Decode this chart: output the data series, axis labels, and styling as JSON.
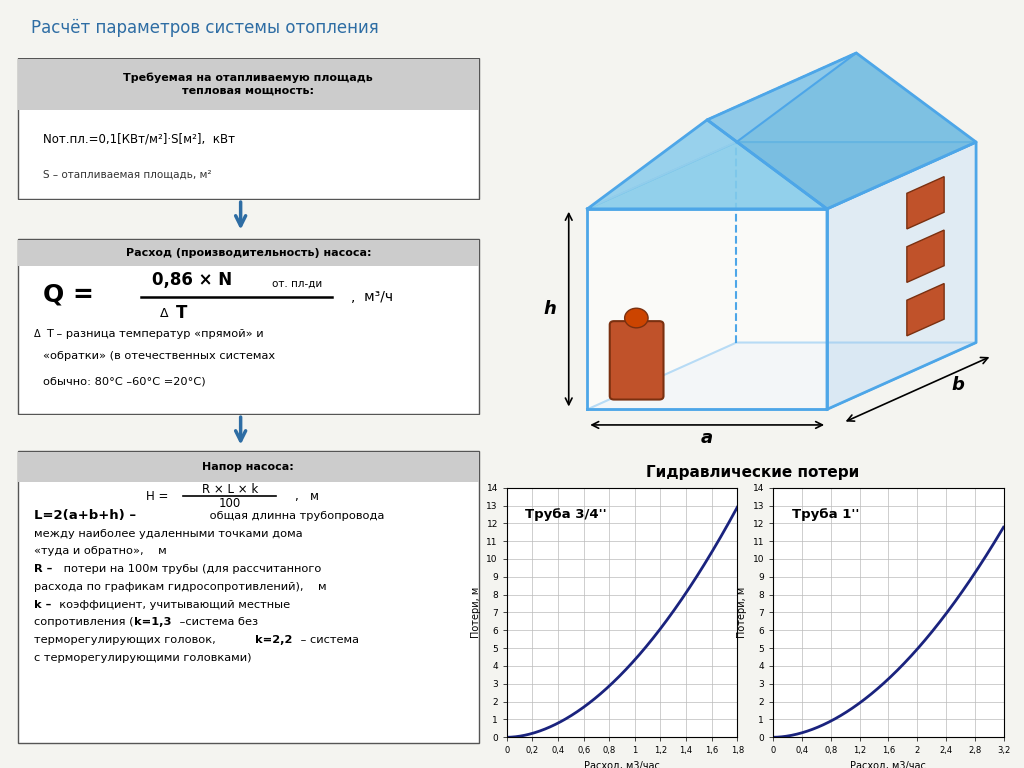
{
  "title": "Расчёт параметров системы отопления",
  "title_color": "#2e6da4",
  "bg_color": "#f5f5f0",
  "box_border_color": "#555555",
  "curve_color": "#1a237e",
  "grid_color": "#bbbbbb",
  "chart_title": "Гидравлические потери",
  "chart1_label": "Труба 3/4''",
  "chart2_label": "Труба 1''",
  "chart1_xlabel": "Расход, м3/час",
  "chart2_xlabel": "Расход, м3/час",
  "chart_ylabel1": "Потери, м",
  "chart_ylabel2": "Потери, м",
  "chart1_xlim": [
    0,
    1.8
  ],
  "chart1_ylim": [
    0,
    14
  ],
  "chart2_xlim": [
    0,
    3.2
  ],
  "chart2_ylim": [
    0,
    14
  ],
  "chart1_xticks": [
    0,
    0.2,
    0.4,
    0.6,
    0.8,
    1.0,
    1.2,
    1.4,
    1.6,
    1.8
  ],
  "chart2_xticks": [
    0,
    0.4,
    0.8,
    1.2,
    1.6,
    2.0,
    2.4,
    2.8,
    3.2
  ],
  "chart1_yticks": [
    0,
    1,
    2,
    3,
    4,
    5,
    6,
    7,
    8,
    9,
    10,
    11,
    12,
    13,
    14
  ],
  "chart2_yticks": [
    0,
    1,
    2,
    3,
    4,
    5,
    6,
    7,
    8,
    9,
    10,
    11,
    12,
    13,
    14
  ],
  "house_color": "#4da6e8",
  "house_wall_color": "#ddeeff",
  "radiator_color": "#c0522a",
  "boiler_color": "#c0522a",
  "arrow_color": "#2e6da4"
}
